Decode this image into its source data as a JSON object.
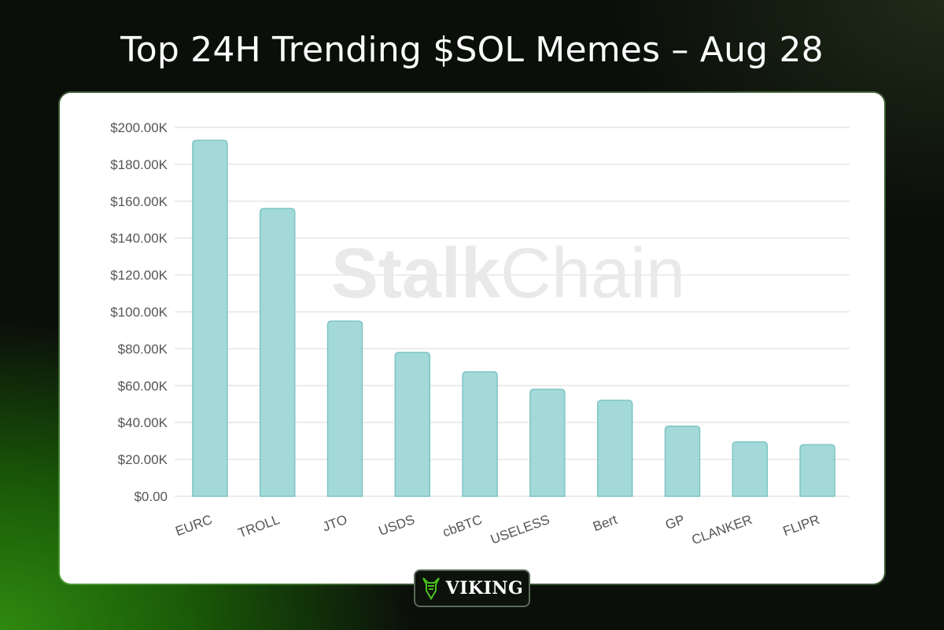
{
  "header": {
    "title": "Top 24H Trending $SOL Memes – Aug 28"
  },
  "watermark": {
    "bold": "Stalk",
    "light": "Chain"
  },
  "badge": {
    "label": "VIKING",
    "icon": "viking-helmet-icon"
  },
  "colors": {
    "bar_fill": "#a3d9d9",
    "bar_stroke": "#7ec4c4",
    "grid": "#e6e6e6",
    "accent": "#49c41a"
  },
  "chart_data": {
    "type": "bar",
    "categories": [
      "EURC",
      "TROLL",
      "JTO",
      "USDS",
      "cbBTC",
      "USELESS",
      "Bert",
      "GP",
      "CLANKER",
      "FLIPR"
    ],
    "values": [
      193000,
      156000,
      95000,
      78000,
      67500,
      58000,
      52000,
      38000,
      29500,
      28000
    ],
    "ylim": [
      0,
      200000
    ],
    "yticks": [
      "$0.00",
      "$20.00K",
      "$40.00K",
      "$60.00K",
      "$80.00K",
      "$100.00K",
      "$120.00K",
      "$140.00K",
      "$160.00K",
      "$180.00K",
      "$200.00K"
    ],
    "grid": true,
    "legend": "none"
  }
}
